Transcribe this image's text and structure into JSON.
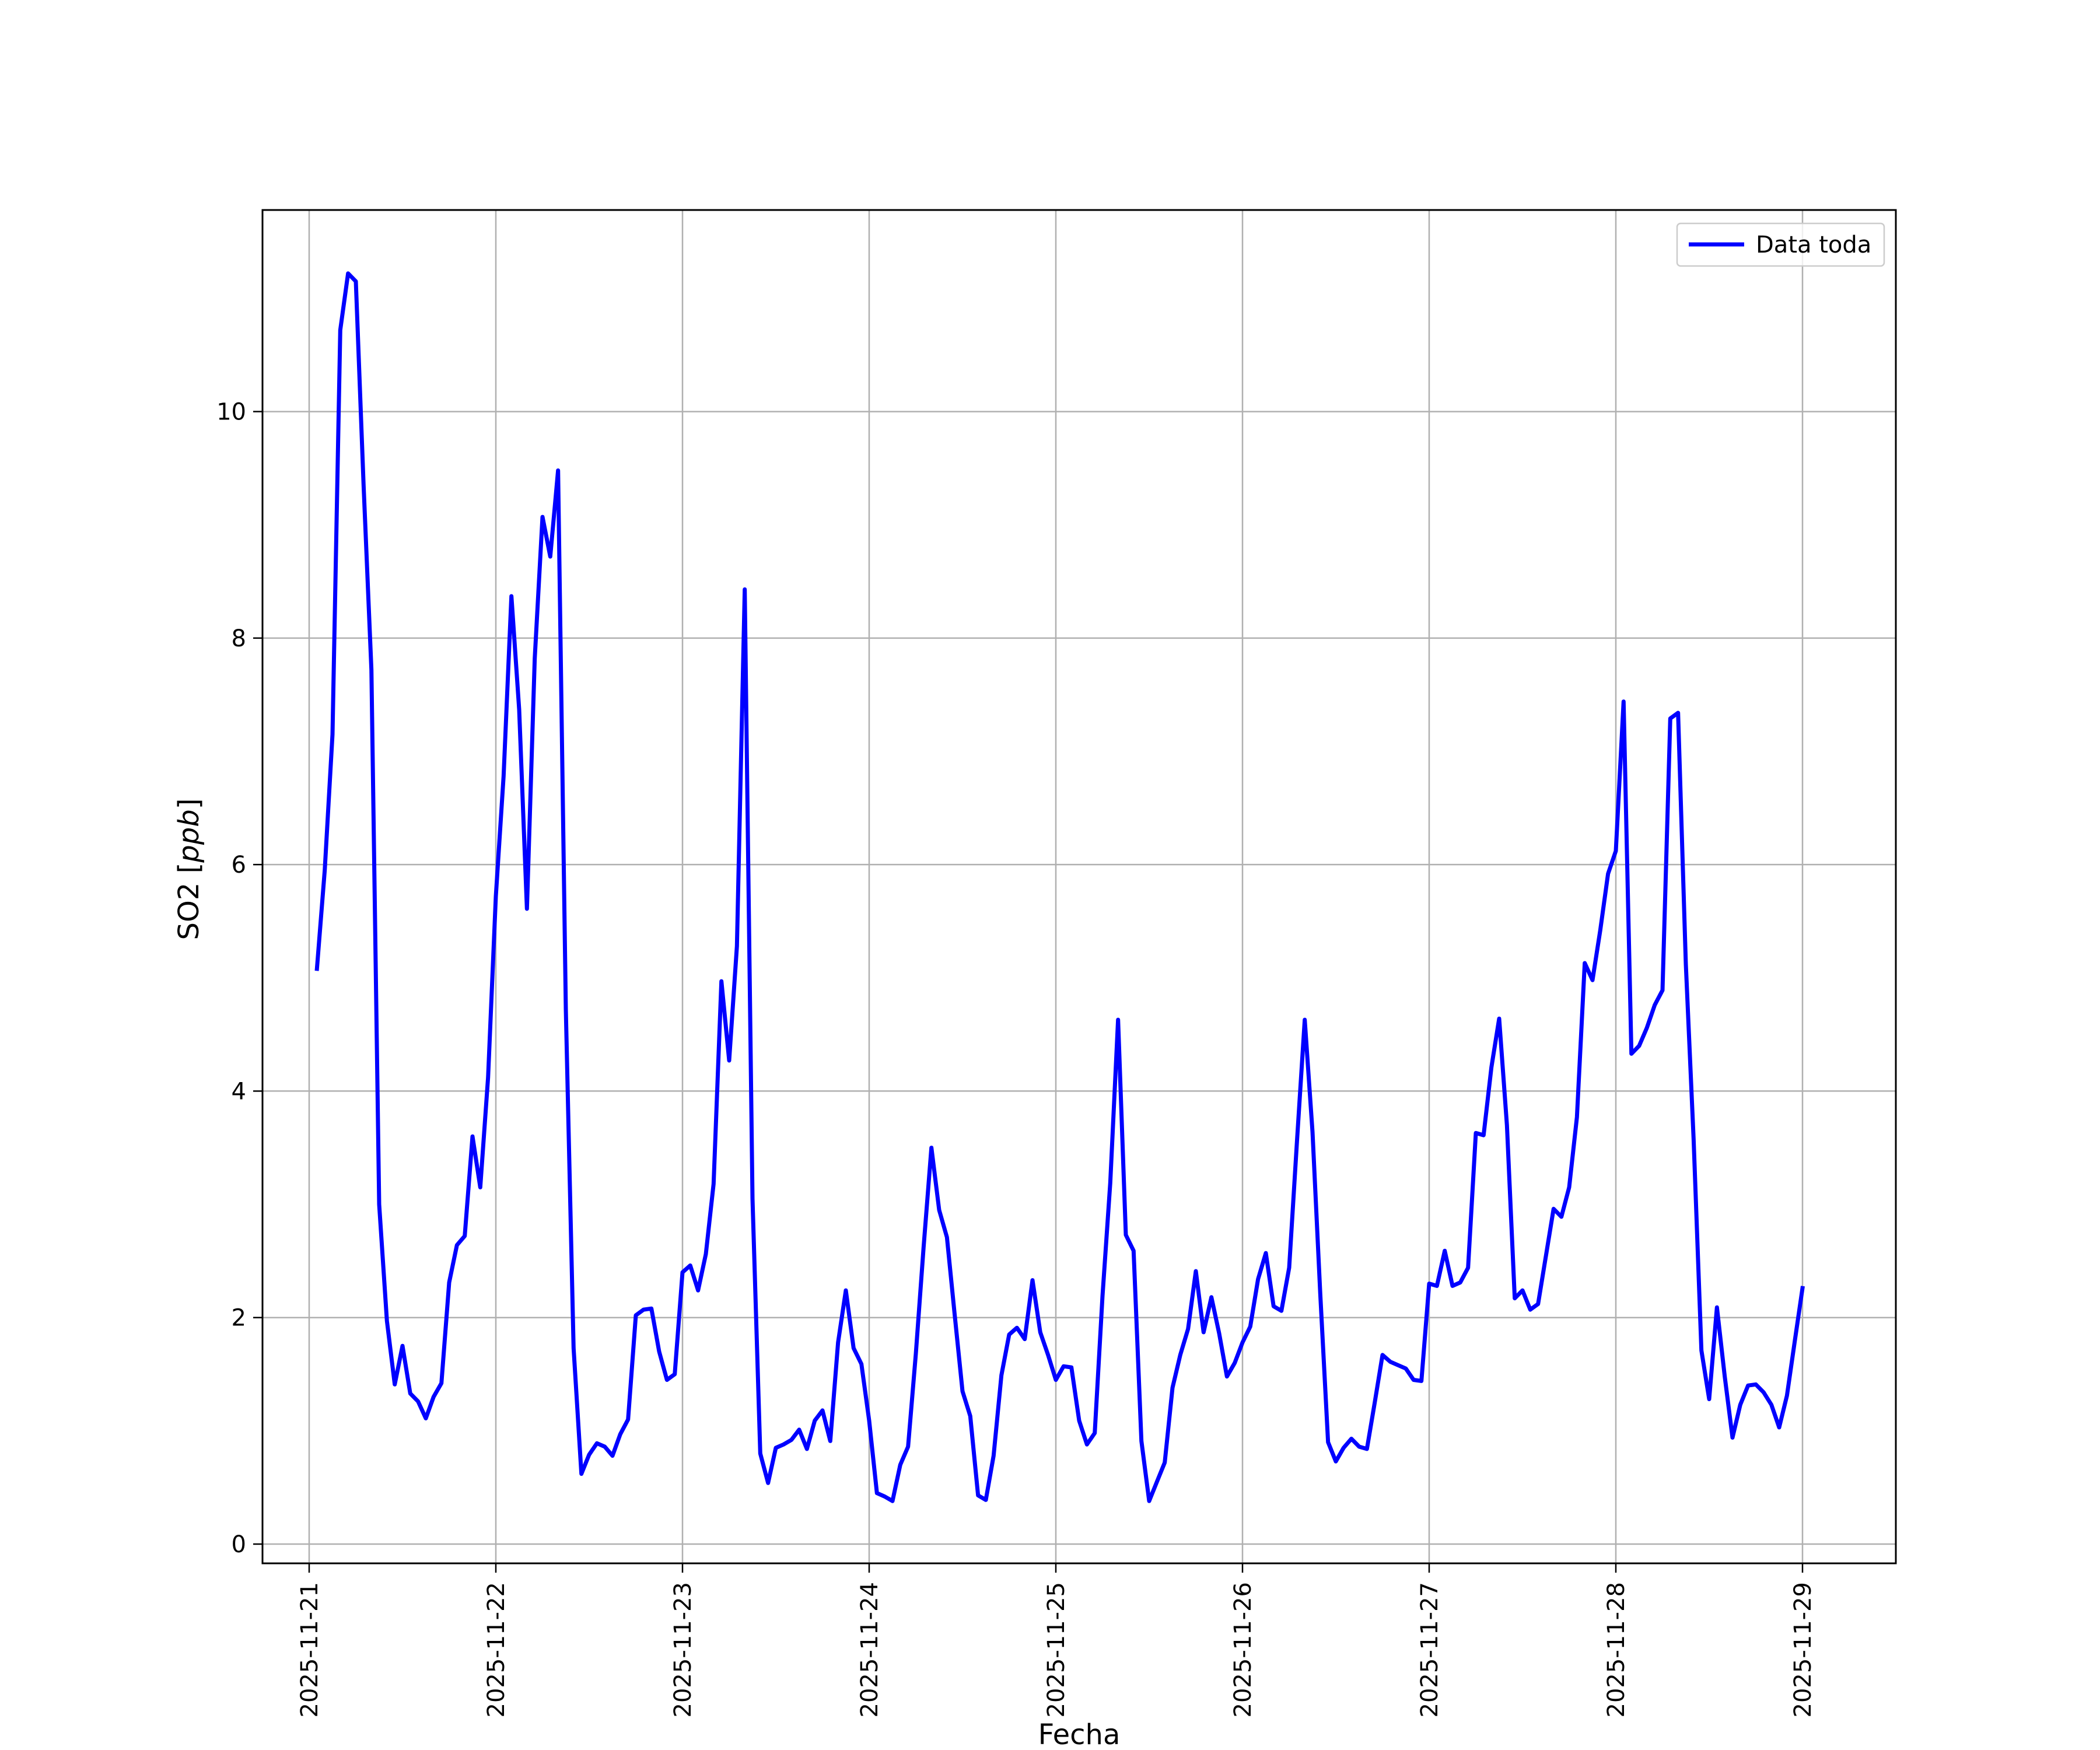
{
  "chart_data": {
    "type": "line",
    "xlabel": "Fecha",
    "ylabel": "SO2 [ppb]",
    "ylabel_parts": {
      "prefix": "SO2 [",
      "unit": "ppb",
      "suffix": "]"
    },
    "ylim": [
      -0.17,
      11.78
    ],
    "xlim": [
      "2025-11-20T18:00",
      "2025-11-29T12:00"
    ],
    "x_ticks": [
      "2025-11-21",
      "2025-11-22",
      "2025-11-23",
      "2025-11-24",
      "2025-11-25",
      "2025-11-26",
      "2025-11-27",
      "2025-11-28",
      "2025-11-29"
    ],
    "y_ticks": [
      0,
      2,
      4,
      6,
      8,
      10
    ],
    "grid": true,
    "legend_position": "upper right",
    "series": [
      {
        "name": "Data toda",
        "color": "#0000ff",
        "points": [
          [
            "2025-11-21T01:00",
            5.08
          ],
          [
            "2025-11-21T02:00",
            5.95
          ],
          [
            "2025-11-21T03:00",
            7.15
          ],
          [
            "2025-11-21T04:00",
            10.72
          ],
          [
            "2025-11-21T05:00",
            11.22
          ],
          [
            "2025-11-21T06:00",
            11.15
          ],
          [
            "2025-11-21T07:00",
            9.35
          ],
          [
            "2025-11-21T08:00",
            7.72
          ],
          [
            "2025-11-21T09:00",
            3.0
          ],
          [
            "2025-11-21T10:00",
            1.97
          ],
          [
            "2025-11-21T11:00",
            1.41
          ],
          [
            "2025-11-21T12:00",
            1.75
          ],
          [
            "2025-11-21T13:00",
            1.33
          ],
          [
            "2025-11-21T14:00",
            1.26
          ],
          [
            "2025-11-21T15:00",
            1.11
          ],
          [
            "2025-11-21T16:00",
            1.3
          ],
          [
            "2025-11-21T17:00",
            1.42
          ],
          [
            "2025-11-21T18:00",
            2.31
          ],
          [
            "2025-11-21T19:00",
            2.64
          ],
          [
            "2025-11-21T20:00",
            2.72
          ],
          [
            "2025-11-21T21:00",
            3.6
          ],
          [
            "2025-11-21T22:00",
            3.15
          ],
          [
            "2025-11-21T23:00",
            4.12
          ],
          [
            "2025-11-22T00:00",
            5.72
          ],
          [
            "2025-11-22T01:00",
            6.78
          ],
          [
            "2025-11-22T02:00",
            8.37
          ],
          [
            "2025-11-22T03:00",
            7.37
          ],
          [
            "2025-11-22T04:00",
            5.61
          ],
          [
            "2025-11-22T05:00",
            7.82
          ],
          [
            "2025-11-22T06:00",
            9.07
          ],
          [
            "2025-11-22T07:00",
            8.72
          ],
          [
            "2025-11-22T08:00",
            9.48
          ],
          [
            "2025-11-22T09:00",
            4.72
          ],
          [
            "2025-11-22T10:00",
            1.73
          ],
          [
            "2025-11-22T11:00",
            0.62
          ],
          [
            "2025-11-22T12:00",
            0.79
          ],
          [
            "2025-11-22T13:00",
            0.89
          ],
          [
            "2025-11-22T14:00",
            0.86
          ],
          [
            "2025-11-22T15:00",
            0.78
          ],
          [
            "2025-11-22T16:00",
            0.97
          ],
          [
            "2025-11-22T17:00",
            1.1
          ],
          [
            "2025-11-22T18:00",
            2.02
          ],
          [
            "2025-11-22T19:00",
            2.07
          ],
          [
            "2025-11-22T20:00",
            2.08
          ],
          [
            "2025-11-22T21:00",
            1.7
          ],
          [
            "2025-11-22T22:00",
            1.45
          ],
          [
            "2025-11-22T23:00",
            1.5
          ],
          [
            "2025-11-23T00:00",
            2.4
          ],
          [
            "2025-11-23T01:00",
            2.46
          ],
          [
            "2025-11-23T02:00",
            2.24
          ],
          [
            "2025-11-23T03:00",
            2.56
          ],
          [
            "2025-11-23T04:00",
            3.18
          ],
          [
            "2025-11-23T05:00",
            4.97
          ],
          [
            "2025-11-23T06:00",
            4.27
          ],
          [
            "2025-11-23T07:00",
            5.28
          ],
          [
            "2025-11-23T08:00",
            8.43
          ],
          [
            "2025-11-23T09:00",
            3.05
          ],
          [
            "2025-11-23T10:00",
            0.8
          ],
          [
            "2025-11-23T11:00",
            0.54
          ],
          [
            "2025-11-23T12:00",
            0.85
          ],
          [
            "2025-11-23T13:00",
            0.88
          ],
          [
            "2025-11-23T14:00",
            0.92
          ],
          [
            "2025-11-23T15:00",
            1.01
          ],
          [
            "2025-11-23T16:00",
            0.84
          ],
          [
            "2025-11-23T17:00",
            1.09
          ],
          [
            "2025-11-23T18:00",
            1.18
          ],
          [
            "2025-11-23T19:00",
            0.91
          ],
          [
            "2025-11-23T20:00",
            1.78
          ],
          [
            "2025-11-23T21:00",
            2.24
          ],
          [
            "2025-11-23T22:00",
            1.73
          ],
          [
            "2025-11-23T23:00",
            1.59
          ],
          [
            "2025-11-24T00:00",
            1.09
          ],
          [
            "2025-11-24T01:00",
            0.45
          ],
          [
            "2025-11-24T02:00",
            0.42
          ],
          [
            "2025-11-24T03:00",
            0.38
          ],
          [
            "2025-11-24T04:00",
            0.7
          ],
          [
            "2025-11-24T05:00",
            0.86
          ],
          [
            "2025-11-24T06:00",
            1.68
          ],
          [
            "2025-11-24T07:00",
            2.62
          ],
          [
            "2025-11-24T08:00",
            3.5
          ],
          [
            "2025-11-24T09:00",
            2.95
          ],
          [
            "2025-11-24T10:00",
            2.71
          ],
          [
            "2025-11-24T11:00",
            2.02
          ],
          [
            "2025-11-24T12:00",
            1.35
          ],
          [
            "2025-11-24T13:00",
            1.13
          ],
          [
            "2025-11-24T14:00",
            0.43
          ],
          [
            "2025-11-24T15:00",
            0.39
          ],
          [
            "2025-11-24T16:00",
            0.78
          ],
          [
            "2025-11-24T17:00",
            1.49
          ],
          [
            "2025-11-24T18:00",
            1.85
          ],
          [
            "2025-11-24T19:00",
            1.91
          ],
          [
            "2025-11-24T20:00",
            1.81
          ],
          [
            "2025-11-24T21:00",
            2.33
          ],
          [
            "2025-11-24T22:00",
            1.87
          ],
          [
            "2025-11-24T23:00",
            1.67
          ],
          [
            "2025-11-25T00:00",
            1.45
          ],
          [
            "2025-11-25T01:00",
            1.57
          ],
          [
            "2025-11-25T02:00",
            1.56
          ],
          [
            "2025-11-25T03:00",
            1.09
          ],
          [
            "2025-11-25T04:00",
            0.88
          ],
          [
            "2025-11-25T05:00",
            0.98
          ],
          [
            "2025-11-25T06:00",
            2.19
          ],
          [
            "2025-11-25T07:00",
            3.19
          ],
          [
            "2025-11-25T08:00",
            4.63
          ],
          [
            "2025-11-25T09:00",
            2.73
          ],
          [
            "2025-11-25T10:00",
            2.59
          ],
          [
            "2025-11-25T11:00",
            0.91
          ],
          [
            "2025-11-25T12:00",
            0.38
          ],
          [
            "2025-11-25T13:00",
            0.55
          ],
          [
            "2025-11-25T14:00",
            0.72
          ],
          [
            "2025-11-25T15:00",
            1.38
          ],
          [
            "2025-11-25T16:00",
            1.67
          ],
          [
            "2025-11-25T17:00",
            1.9
          ],
          [
            "2025-11-25T18:00",
            2.41
          ],
          [
            "2025-11-25T19:00",
            1.87
          ],
          [
            "2025-11-25T20:00",
            2.18
          ],
          [
            "2025-11-25T21:00",
            1.86
          ],
          [
            "2025-11-25T22:00",
            1.48
          ],
          [
            "2025-11-25T23:00",
            1.6
          ],
          [
            "2025-11-26T00:00",
            1.78
          ],
          [
            "2025-11-26T01:00",
            1.92
          ],
          [
            "2025-11-26T02:00",
            2.34
          ],
          [
            "2025-11-26T03:00",
            2.57
          ],
          [
            "2025-11-26T04:00",
            2.1
          ],
          [
            "2025-11-26T05:00",
            2.06
          ],
          [
            "2025-11-26T06:00",
            2.44
          ],
          [
            "2025-11-26T07:00",
            3.55
          ],
          [
            "2025-11-26T08:00",
            4.63
          ],
          [
            "2025-11-26T09:00",
            3.64
          ],
          [
            "2025-11-26T10:00",
            2.21
          ],
          [
            "2025-11-26T11:00",
            0.9
          ],
          [
            "2025-11-26T12:00",
            0.73
          ],
          [
            "2025-11-26T13:00",
            0.85
          ],
          [
            "2025-11-26T14:00",
            0.93
          ],
          [
            "2025-11-26T15:00",
            0.86
          ],
          [
            "2025-11-26T16:00",
            0.84
          ],
          [
            "2025-11-26T17:00",
            1.25
          ],
          [
            "2025-11-26T18:00",
            1.67
          ],
          [
            "2025-11-26T19:00",
            1.61
          ],
          [
            "2025-11-26T20:00",
            1.58
          ],
          [
            "2025-11-26T21:00",
            1.55
          ],
          [
            "2025-11-26T22:00",
            1.45
          ],
          [
            "2025-11-26T23:00",
            1.44
          ],
          [
            "2025-11-27T00:00",
            2.3
          ],
          [
            "2025-11-27T01:00",
            2.28
          ],
          [
            "2025-11-27T02:00",
            2.59
          ],
          [
            "2025-11-27T03:00",
            2.28
          ],
          [
            "2025-11-27T04:00",
            2.31
          ],
          [
            "2025-11-27T05:00",
            2.44
          ],
          [
            "2025-11-27T06:00",
            3.63
          ],
          [
            "2025-11-27T07:00",
            3.61
          ],
          [
            "2025-11-27T08:00",
            4.21
          ],
          [
            "2025-11-27T09:00",
            4.64
          ],
          [
            "2025-11-27T10:00",
            3.7
          ],
          [
            "2025-11-27T11:00",
            2.17
          ],
          [
            "2025-11-27T12:00",
            2.24
          ],
          [
            "2025-11-27T13:00",
            2.07
          ],
          [
            "2025-11-27T14:00",
            2.12
          ],
          [
            "2025-11-27T15:00",
            2.54
          ],
          [
            "2025-11-27T16:00",
            2.96
          ],
          [
            "2025-11-27T17:00",
            2.89
          ],
          [
            "2025-11-27T18:00",
            3.15
          ],
          [
            "2025-11-27T19:00",
            3.77
          ],
          [
            "2025-11-27T20:00",
            5.13
          ],
          [
            "2025-11-27T21:00",
            4.98
          ],
          [
            "2025-11-27T22:00",
            5.42
          ],
          [
            "2025-11-27T23:00",
            5.92
          ],
          [
            "2025-11-28T00:00",
            6.12
          ],
          [
            "2025-11-28T01:00",
            7.44
          ],
          [
            "2025-11-28T02:00",
            4.33
          ],
          [
            "2025-11-28T03:00",
            4.4
          ],
          [
            "2025-11-28T04:00",
            4.56
          ],
          [
            "2025-11-28T05:00",
            4.76
          ],
          [
            "2025-11-28T06:00",
            4.89
          ],
          [
            "2025-11-28T07:00",
            7.29
          ],
          [
            "2025-11-28T08:00",
            7.34
          ],
          [
            "2025-11-28T09:00",
            5.12
          ],
          [
            "2025-11-28T10:00",
            3.58
          ],
          [
            "2025-11-28T11:00",
            1.71
          ],
          [
            "2025-11-28T12:00",
            1.28
          ],
          [
            "2025-11-28T13:00",
            2.09
          ],
          [
            "2025-11-28T14:00",
            1.48
          ],
          [
            "2025-11-28T15:00",
            0.94
          ],
          [
            "2025-11-28T16:00",
            1.23
          ],
          [
            "2025-11-28T17:00",
            1.4
          ],
          [
            "2025-11-28T18:00",
            1.41
          ],
          [
            "2025-11-28T19:00",
            1.34
          ],
          [
            "2025-11-28T20:00",
            1.23
          ],
          [
            "2025-11-28T21:00",
            1.03
          ],
          [
            "2025-11-28T22:00",
            1.31
          ],
          [
            "2025-11-28T23:00",
            1.79
          ],
          [
            "2025-11-29T00:00",
            2.26
          ]
        ]
      }
    ]
  }
}
